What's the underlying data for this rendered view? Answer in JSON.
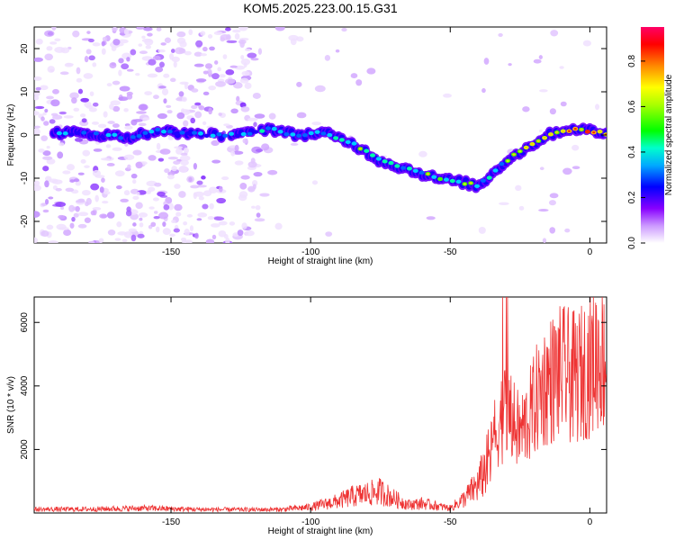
{
  "title": "KOM5.2025.223.00.15.G31",
  "chart_data": [
    {
      "type": "heatmap",
      "xlabel": "Height of straight line (km)",
      "ylabel": "Frequency (Hz)",
      "xlim": [
        -199,
        6
      ],
      "ylim": [
        -25,
        25
      ],
      "xticks": [
        -150,
        -100,
        -50,
        0
      ],
      "yticks": [
        -20,
        -10,
        0,
        10,
        20
      ],
      "colorbar": {
        "label": "Normalized spectral amplitude",
        "range": [
          0,
          0.95
        ],
        "ticks": [
          0.0,
          0.2,
          0.4,
          0.6,
          0.8
        ]
      },
      "ridge": {
        "x": [
          -195,
          -185,
          -175,
          -165,
          -155,
          -145,
          -135,
          -125,
          -115,
          -105,
          -95,
          -85,
          -75,
          -65,
          -55,
          -45,
          -40,
          -35,
          -30,
          -25,
          -20,
          -15,
          -10,
          -5,
          0,
          5
        ],
        "y": [
          0.5,
          0.5,
          0,
          -0.5,
          1,
          0.5,
          0,
          0,
          1.5,
          0,
          0.5,
          -2,
          -6,
          -8,
          -10,
          -11,
          -12,
          -9,
          -6,
          -4,
          -2,
          0,
          1,
          1.5,
          1,
          0.5
        ]
      }
    },
    {
      "type": "line",
      "xlabel": "Height of straight line (km)",
      "ylabel": "SNR (10 * v/v)",
      "xlim": [
        -199,
        6
      ],
      "ylim": [
        0,
        6800
      ],
      "xticks": [
        -150,
        -100,
        -50,
        0
      ],
      "yticks": [
        2000,
        4000,
        6000
      ],
      "color": "#ee3333",
      "envelope": {
        "x": [
          -199,
          -180,
          -160,
          -140,
          -120,
          -110,
          -100,
          -90,
          -85,
          -80,
          -75,
          -70,
          -65,
          -60,
          -55,
          -50,
          -45,
          -40,
          -35,
          -32,
          -30,
          -28,
          -25,
          -22,
          -18,
          -15,
          -10,
          -5,
          0,
          3,
          6
        ],
        "y": [
          150,
          160,
          200,
          150,
          140,
          150,
          250,
          500,
          700,
          800,
          900,
          600,
          350,
          400,
          300,
          200,
          600,
          1200,
          2500,
          3300,
          3600,
          3200,
          2800,
          3300,
          4200,
          4600,
          4900,
          4700,
          5200,
          5600,
          5300
        ]
      }
    }
  ]
}
